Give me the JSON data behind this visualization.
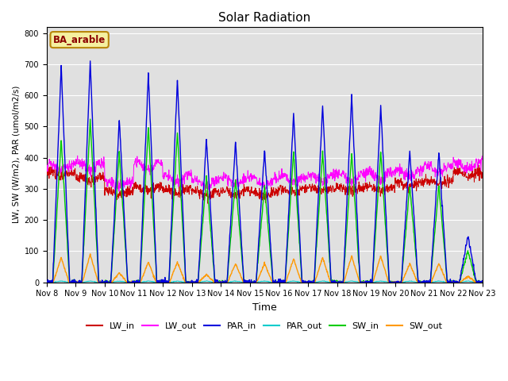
{
  "title": "Solar Radiation",
  "ylabel": "LW, SW (W/m2), PAR (umol/m2/s)",
  "xlabel": "Time",
  "site_label": "BA_arable",
  "ylim": [
    0,
    820
  ],
  "yticks": [
    0,
    100,
    200,
    300,
    400,
    500,
    600,
    700,
    800
  ],
  "background_color": "#e0e0e0",
  "colors": {
    "LW_in": "#cc0000",
    "LW_out": "#ff00ff",
    "PAR_in": "#0000dd",
    "PAR_out": "#00cccc",
    "SW_in": "#00cc00",
    "SW_out": "#ff9900"
  },
  "n_days": 15,
  "start_day": 8,
  "pts_per_day": 96,
  "par_in_peaks": [
    695,
    710,
    525,
    670,
    650,
    460,
    450,
    425,
    540,
    565,
    595,
    565,
    420,
    415,
    150
  ],
  "sw_in_peaks": [
    460,
    520,
    415,
    500,
    480,
    340,
    330,
    310,
    420,
    420,
    415,
    420,
    310,
    310,
    100
  ],
  "sw_out_peaks": [
    80,
    90,
    30,
    65,
    65,
    25,
    60,
    60,
    75,
    80,
    85,
    85,
    60,
    60,
    20
  ],
  "lw_in_day": [
    340,
    325,
    280,
    295,
    285,
    275,
    280,
    275,
    290,
    295,
    295,
    295,
    310,
    315,
    340
  ],
  "lw_in_night": [
    355,
    340,
    295,
    310,
    300,
    290,
    295,
    290,
    300,
    305,
    305,
    305,
    320,
    325,
    355
  ],
  "lw_out_day": [
    365,
    360,
    310,
    360,
    320,
    310,
    315,
    310,
    320,
    325,
    325,
    330,
    340,
    355,
    365
  ],
  "lw_out_night": [
    380,
    385,
    325,
    385,
    345,
    330,
    335,
    335,
    340,
    345,
    350,
    355,
    360,
    375,
    385
  ]
}
